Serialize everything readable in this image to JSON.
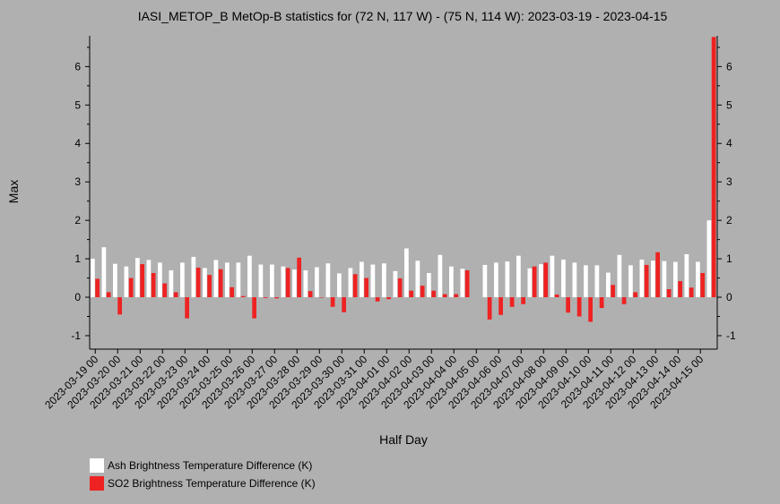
{
  "chart_data": {
    "type": "bar",
    "title": "IASI_METOP_B MetOp-B statistics for (72 N, 117 W) - (75 N, 114 W): 2023-03-19 - 2023-04-15",
    "xlabel": "Half Day",
    "ylabel": "Max",
    "ylim": [
      -1.35,
      6.8
    ],
    "yticks": [
      -1,
      0,
      1,
      2,
      3,
      4,
      5,
      6
    ],
    "x_tick_labels": [
      "2023-03-19 00",
      "2023-03-20 00",
      "2023-03-21 00",
      "2023-03-22 00",
      "2023-03-23 00",
      "2023-03-24 00",
      "2023-03-25 00",
      "2023-03-26 00",
      "2023-03-27 00",
      "2023-03-28 00",
      "2023-03-29 00",
      "2023-03-30 00",
      "2023-03-31 00",
      "2023-04-01 00",
      "2023-04-02 00",
      "2023-04-03 00",
      "2023-04-04 00",
      "2023-04-05 00",
      "2023-04-06 00",
      "2023-04-07 00",
      "2023-04-08 00",
      "2023-04-09 00",
      "2023-04-10 00",
      "2023-04-11 00",
      "2023-04-12 00",
      "2023-04-13 00",
      "2023-04-14 00",
      "2023-04-15 00"
    ],
    "series": [
      {
        "name": "Ash Brightness Temperature Difference (K)",
        "color": "#ffffff",
        "values": [
          1.0,
          1.3,
          0.87,
          0.8,
          1.02,
          0.97,
          0.9,
          0.7,
          0.9,
          1.05,
          0.76,
          0.97,
          0.9,
          0.9,
          1.08,
          0.85,
          0.85,
          0.8,
          0.72,
          0.7,
          0.78,
          0.88,
          0.62,
          0.76,
          0.92,
          0.85,
          0.88,
          0.68,
          1.27,
          0.95,
          0.63,
          1.1,
          0.8,
          0.74,
          null,
          0.84,
          0.9,
          0.93,
          1.08,
          0.75,
          0.86,
          1.08,
          0.98,
          0.9,
          0.83,
          0.83,
          0.64,
          1.1,
          0.83,
          0.98,
          0.95,
          0.94,
          0.92,
          1.12,
          0.92,
          2.0
        ]
      },
      {
        "name": "SO2 Brightness Temperature Difference (K)",
        "color": "#ee2222",
        "values": [
          0.48,
          0.13,
          -0.45,
          0.5,
          0.86,
          0.63,
          0.36,
          0.13,
          -0.55,
          0.77,
          0.58,
          0.73,
          0.26,
          0.03,
          -0.55,
          -0.02,
          -0.03,
          0.76,
          1.03,
          0.16,
          0.0,
          -0.25,
          -0.39,
          0.6,
          0.5,
          -0.11,
          -0.05,
          0.49,
          0.17,
          0.3,
          0.17,
          0.08,
          0.08,
          0.7,
          null,
          -0.58,
          -0.46,
          -0.25,
          -0.18,
          0.8,
          0.9,
          0.07,
          -0.4,
          -0.5,
          -0.64,
          -0.28,
          0.32,
          -0.18,
          0.13,
          0.84,
          1.17,
          0.21,
          0.42,
          0.25,
          0.63,
          6.77
        ]
      }
    ],
    "legend": "bottom-left"
  }
}
